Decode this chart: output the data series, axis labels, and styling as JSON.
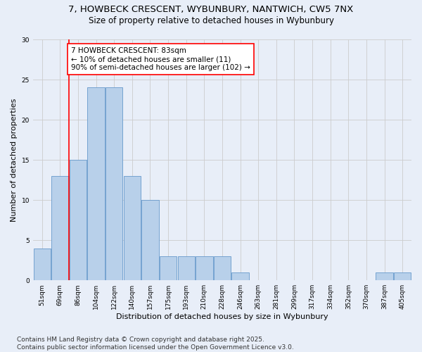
{
  "title_line1": "7, HOWBECK CRESCENT, WYBUNBURY, NANTWICH, CW5 7NX",
  "title_line2": "Size of property relative to detached houses in Wybunbury",
  "xlabel": "Distribution of detached houses by size in Wybunbury",
  "ylabel": "Number of detached properties",
  "bar_labels": [
    "51sqm",
    "69sqm",
    "86sqm",
    "104sqm",
    "122sqm",
    "140sqm",
    "157sqm",
    "175sqm",
    "193sqm",
    "210sqm",
    "228sqm",
    "246sqm",
    "263sqm",
    "281sqm",
    "299sqm",
    "317sqm",
    "334sqm",
    "352sqm",
    "370sqm",
    "387sqm",
    "405sqm"
  ],
  "bar_values": [
    4,
    13,
    15,
    24,
    24,
    13,
    10,
    3,
    3,
    3,
    3,
    1,
    0,
    0,
    0,
    0,
    0,
    0,
    0,
    1,
    1
  ],
  "bar_color": "#b8d0ea",
  "bar_edge_color": "#6699cc",
  "vline_x": 1.5,
  "vline_color": "red",
  "annotation_text": "7 HOWBECK CRESCENT: 83sqm\n← 10% of detached houses are smaller (11)\n90% of semi-detached houses are larger (102) →",
  "annotation_box_color": "white",
  "annotation_box_edge_color": "red",
  "ylim": [
    0,
    30
  ],
  "yticks": [
    0,
    5,
    10,
    15,
    20,
    25,
    30
  ],
  "grid_color": "#cccccc",
  "background_color": "#e8eef8",
  "footer_text": "Contains HM Land Registry data © Crown copyright and database right 2025.\nContains public sector information licensed under the Open Government Licence v3.0.",
  "title_fontsize": 9.5,
  "subtitle_fontsize": 8.5,
  "axis_label_fontsize": 8,
  "tick_fontsize": 6.5,
  "annotation_fontsize": 7.5,
  "footer_fontsize": 6.5
}
